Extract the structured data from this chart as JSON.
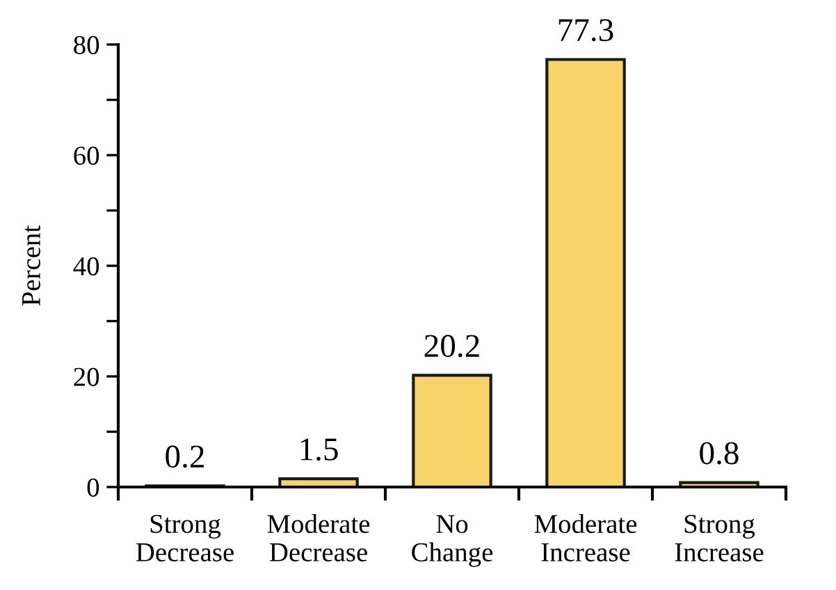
{
  "chart_data": {
    "type": "bar",
    "ylabel": "Percent",
    "categories": [
      "Strong\nDecrease",
      "Moderate\nDecrease",
      "No\nChange",
      "Moderate\nIncrease",
      "Strong\nIncrease"
    ],
    "values": [
      0.2,
      1.5,
      20.2,
      77.3,
      0.8
    ],
    "color": "#f7d36a",
    "ylim": [
      0,
      80
    ],
    "yticks": [
      0,
      {
        "value": 10,
        "label": null
      },
      20,
      {
        "value": 30,
        "label": null
      },
      40,
      {
        "value": 50,
        "label": null
      },
      60,
      {
        "value": 70,
        "label": null
      },
      80
    ],
    "data_labels": true,
    "grid": false,
    "legend": false
  }
}
